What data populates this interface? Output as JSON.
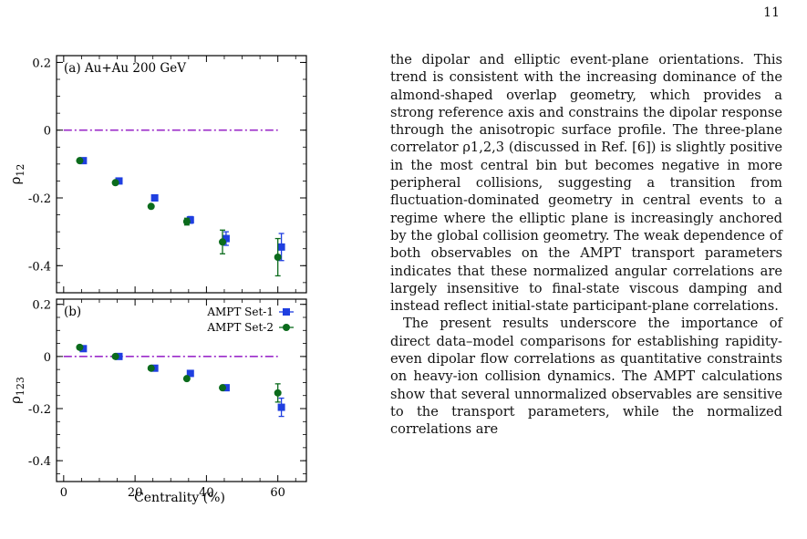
{
  "page_number": "11",
  "figure": {
    "panel_a": {
      "label": "(a) Au+Au 200 GeV",
      "ylabel": "ρ",
      "ylabel_sub": "12",
      "yticks": [
        "0.2",
        "0",
        "-0.2",
        "-0.4"
      ]
    },
    "panel_b": {
      "label": "(b)",
      "ylabel": "ρ",
      "ylabel_sub": "123",
      "yticks": [
        "0.2",
        "0",
        "-0.2",
        "-0.4"
      ]
    },
    "xticks": [
      "0",
      "20",
      "40",
      "60"
    ],
    "xlabel": "Centrality (%)",
    "colors": {
      "set1": "#1f3fe0",
      "set2": "#0b6b1c",
      "ref": "#9b2bc9"
    }
  },
  "chart_data": [
    {
      "type": "scatter",
      "title": "(a) Au+Au 200 GeV",
      "xlabel": "Centrality (%)",
      "ylabel": "ρ12",
      "xlim": [
        -2,
        68
      ],
      "ylim": [
        -0.48,
        0.22
      ],
      "reference_line": 0,
      "series": [
        {
          "name": "AMPT Set-1",
          "marker": "square",
          "x": [
            5.5,
            15.5,
            25.5,
            35.5,
            45.5,
            61
          ],
          "y": [
            -0.09,
            -0.15,
            -0.2,
            -0.265,
            -0.32,
            -0.345
          ],
          "err": [
            0.0,
            0.0,
            0.0,
            0.01,
            0.02,
            0.04
          ]
        },
        {
          "name": "AMPT Set-2",
          "marker": "circle",
          "x": [
            4.5,
            14.5,
            24.5,
            34.5,
            44.5,
            60
          ],
          "y": [
            -0.09,
            -0.155,
            -0.225,
            -0.27,
            -0.33,
            -0.375
          ],
          "err": [
            0.0,
            0.0,
            0.0,
            0.01,
            0.035,
            0.055
          ]
        }
      ]
    },
    {
      "type": "scatter",
      "title": "(b)",
      "xlabel": "Centrality (%)",
      "ylabel": "ρ123",
      "xlim": [
        -2,
        68
      ],
      "ylim": [
        -0.48,
        0.22
      ],
      "reference_line": 0,
      "legend": "top-right",
      "series": [
        {
          "name": "AMPT Set-1",
          "marker": "square",
          "x": [
            5.5,
            15.5,
            25.5,
            35.5,
            45.5,
            61
          ],
          "y": [
            0.03,
            0.0,
            -0.045,
            -0.065,
            -0.12,
            -0.195
          ],
          "err": [
            0.0,
            0.0,
            0.0,
            0.0,
            0.0,
            0.035
          ]
        },
        {
          "name": "AMPT Set-2",
          "marker": "circle",
          "x": [
            4.5,
            14.5,
            24.5,
            34.5,
            44.5,
            60
          ],
          "y": [
            0.035,
            0.0,
            -0.045,
            -0.085,
            -0.12,
            -0.14
          ],
          "err": [
            0.0,
            0.0,
            0.0,
            0.0,
            0.0,
            0.035
          ]
        }
      ]
    }
  ],
  "body_text": {
    "p1": "the dipolar and elliptic event-plane orientations. This trend is consistent with the increasing dominance of the almond-shaped overlap geometry, which provides a strong reference axis and constrains the dipolar response through the anisotropic surface profile. The three-plane correlator ρ1,2,3 (discussed in Ref. [6]) is slightly positive in the most central bin but becomes negative in more peripheral collisions, suggesting a transition from fluctuation-dominated geometry in central events to a regime where the elliptic plane is increasingly anchored by the global collision geometry. The weak dependence of both observables on the AMPT transport parameters indicates that these normalized angular correlations are largely insensitive to final-state viscous damping and instead reflect initial-state participant-plane correlations.",
    "p2": "The present results underscore the importance of direct data–model comparisons for establishing rapidity-even dipolar flow correlations as quantitative constraints on heavy-ion collision dynamics. The AMPT calculations show that several unnormalized observables are sensitive to the transport parameters, while the normalized correlations are"
  }
}
